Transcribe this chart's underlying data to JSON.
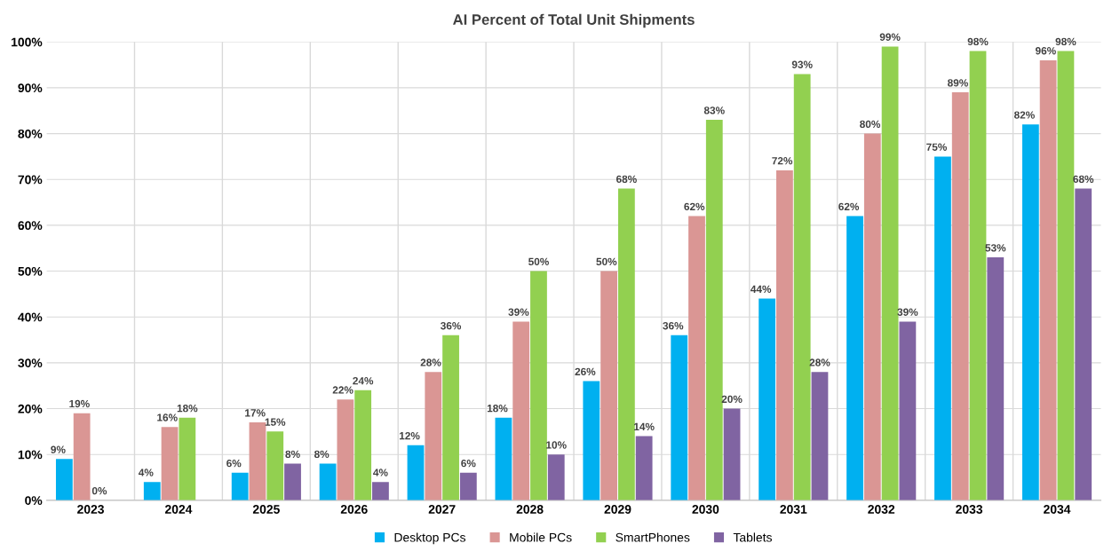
{
  "chart_data": {
    "type": "bar",
    "title": "AI Percent of Total Unit Shipments",
    "categories": [
      "2023",
      "2024",
      "2025",
      "2026",
      "2027",
      "2028",
      "2029",
      "2030",
      "2031",
      "2032",
      "2033",
      "2034"
    ],
    "series": [
      {
        "name": "Desktop PCs",
        "color": "#00b0f0",
        "values": [
          9,
          4,
          6,
          8,
          12,
          18,
          26,
          36,
          44,
          62,
          75,
          82
        ],
        "value_labels": [
          "9%",
          "4%",
          "6%",
          "8%",
          "12%",
          "18%",
          "26%",
          "36%",
          "44%",
          "62%",
          "75%",
          "82%"
        ]
      },
      {
        "name": "Mobile PCs",
        "color": "#da9694",
        "values": [
          19,
          16,
          17,
          22,
          28,
          39,
          50,
          62,
          72,
          80,
          89,
          96
        ],
        "value_labels": [
          "19%",
          "16%",
          "17%",
          "22%",
          "28%",
          "39%",
          "50%",
          "62%",
          "72%",
          "80%",
          "89%",
          "96%"
        ]
      },
      {
        "name": "SmartPhones",
        "color": "#92d050",
        "values": [
          0,
          18,
          15,
          24,
          36,
          50,
          68,
          83,
          93,
          99,
          98,
          98
        ],
        "value_labels": [
          "0%",
          "18%",
          "15%",
          "24%",
          "36%",
          "50%",
          "68%",
          "83%",
          "93%",
          "99%",
          "98%",
          "98%"
        ]
      },
      {
        "name": "Tablets",
        "color": "#8064a2",
        "values": [
          null,
          null,
          8,
          4,
          6,
          10,
          14,
          20,
          28,
          39,
          53,
          68
        ],
        "value_labels": [
          null,
          null,
          "8%",
          "4%",
          "6%",
          "10%",
          "14%",
          "20%",
          "28%",
          "39%",
          "53%",
          "68%"
        ]
      }
    ],
    "ylim": [
      0,
      100
    ],
    "yticks": [
      {
        "value": 0,
        "label": "0%"
      },
      {
        "value": 10,
        "label": "10%"
      },
      {
        "value": 20,
        "label": "20%"
      },
      {
        "value": 30,
        "label": "30%"
      },
      {
        "value": 40,
        "label": "40%"
      },
      {
        "value": 50,
        "label": "50%"
      },
      {
        "value": 60,
        "label": "60%"
      },
      {
        "value": 70,
        "label": "70%"
      },
      {
        "value": 80,
        "label": "80%"
      },
      {
        "value": 90,
        "label": "90%"
      },
      {
        "value": 100,
        "label": "100%"
      }
    ],
    "grid": true,
    "legend": "bottom"
  }
}
